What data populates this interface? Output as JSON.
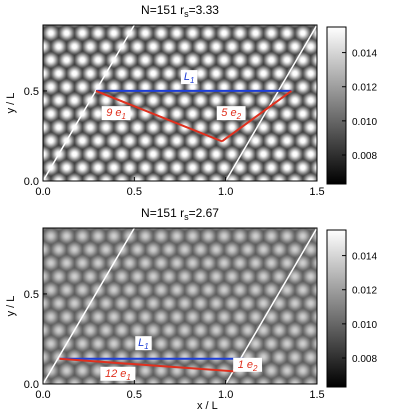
{
  "chart_data": [
    {
      "type": "heatmap",
      "title": "N=151 r",
      "title_sub": "s",
      "title_val": "=3.33",
      "xlabel": "",
      "ylabel": "y / L",
      "xlim": [
        0.0,
        1.5
      ],
      "ylim": [
        0.0,
        0.866
      ],
      "x_ticks": [
        0.0,
        0.5,
        1.0,
        1.5
      ],
      "x_tick_labels": [
        "0.0",
        "0.5",
        "1.0",
        "1.5"
      ],
      "y_ticks": [
        0.0,
        0.5
      ],
      "y_tick_labels": [
        "0.0",
        "0.5"
      ],
      "colorbar": {
        "range": [
          0.0063,
          0.0155
        ],
        "ticks": [
          0.008,
          0.01,
          0.012,
          0.014
        ],
        "tick_labels": [
          "0.008",
          "0.010",
          "0.012",
          "0.014"
        ],
        "colors": [
          "#000000",
          "#ffffff"
        ]
      },
      "contrast": 1.0,
      "lattice": {
        "a": 0.0862,
        "sigma": 0.027
      },
      "boundary_lines": [
        {
          "x0": 0.0,
          "y0": 0.0,
          "x1": 0.5,
          "y1": 0.866
        },
        {
          "x0": 1.0,
          "y0": 0.0,
          "x1": 1.5,
          "y1": 0.866
        }
      ],
      "vectors": {
        "L1": {
          "from": [
            0.29,
            0.5
          ],
          "to": [
            1.36,
            0.5
          ],
          "label": "L",
          "label_sub": "1",
          "label_pos": [
            0.8,
            0.56
          ],
          "color": "#1f3fd6"
        },
        "e1": {
          "from": [
            0.29,
            0.5
          ],
          "to": [
            0.98,
            0.22
          ],
          "label": "9 e",
          "label_sub": "1",
          "label_pos": [
            0.4,
            0.36
          ],
          "color": "#e0301e"
        },
        "e2": {
          "from": [
            0.98,
            0.22
          ],
          "to": [
            1.36,
            0.5
          ],
          "label": "5 e",
          "label_sub": "2",
          "label_pos": [
            1.03,
            0.36
          ],
          "color": "#e0301e"
        }
      }
    },
    {
      "type": "heatmap",
      "title": "N=151 r",
      "title_sub": "s",
      "title_val": "=2.67",
      "xlabel": "x / L",
      "ylabel": "y / L",
      "xlim": [
        0.0,
        1.5
      ],
      "ylim": [
        0.0,
        0.866
      ],
      "x_ticks": [
        0.0,
        0.5,
        1.0,
        1.5
      ],
      "x_tick_labels": [
        "0.0",
        "0.5",
        "1.0",
        "1.5"
      ],
      "y_ticks": [
        0.0,
        0.5
      ],
      "y_tick_labels": [
        "0.0",
        "0.5"
      ],
      "colorbar": {
        "range": [
          0.0063,
          0.0155
        ],
        "ticks": [
          0.008,
          0.01,
          0.012,
          0.014
        ],
        "tick_labels": [
          "0.008",
          "0.010",
          "0.012",
          "0.014"
        ],
        "colors": [
          "#000000",
          "#ffffff"
        ]
      },
      "contrast": 0.55,
      "lattice": {
        "a": 0.0862,
        "sigma": 0.027
      },
      "boundary_lines": [
        {
          "x0": 0.0,
          "y0": 0.0,
          "x1": 0.5,
          "y1": 0.866
        },
        {
          "x0": 1.0,
          "y0": 0.0,
          "x1": 1.5,
          "y1": 0.866
        }
      ],
      "vectors": {
        "L1": {
          "from": [
            0.09,
            0.14
          ],
          "to": [
            1.1,
            0.14
          ],
          "label": "L",
          "label_sub": "1",
          "label_pos": [
            0.55,
            0.21
          ],
          "color": "#1f3fd6"
        },
        "e1": {
          "from": [
            0.09,
            0.14
          ],
          "to": [
            1.05,
            0.07
          ],
          "label": "12 e",
          "label_sub": "1",
          "label_pos": [
            0.41,
            0.04
          ],
          "color": "#e0301e"
        },
        "e2": {
          "from": [
            1.05,
            0.07
          ],
          "to": [
            1.1,
            0.14
          ],
          "label": "1 e",
          "label_sub": "2",
          "label_pos": [
            1.12,
            0.09
          ],
          "color": "#e0301e"
        }
      }
    }
  ]
}
